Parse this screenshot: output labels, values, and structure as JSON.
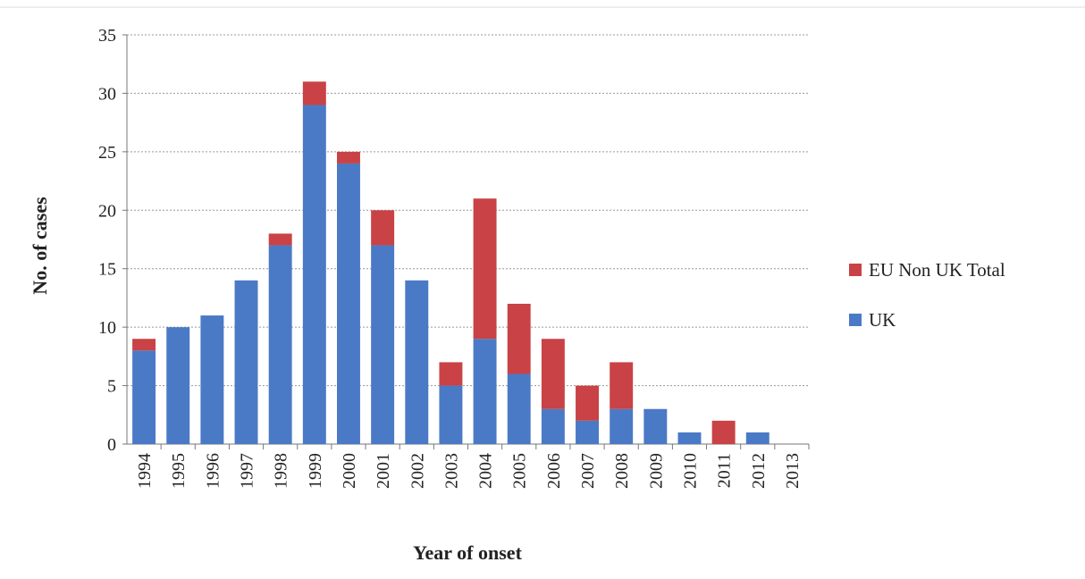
{
  "chart_data": {
    "type": "stacked_bar",
    "x_label": "Year of onset",
    "y_label": "No. of cases",
    "categories": [
      "1994",
      "1995",
      "1996",
      "1997",
      "1998",
      "1999",
      "2000",
      "2001",
      "2002",
      "2003",
      "2004",
      "2005",
      "2006",
      "2007",
      "2008",
      "2009",
      "2010",
      "2011",
      "2012",
      "2013"
    ],
    "series": [
      {
        "name": "UK",
        "color": "#4a7ac6",
        "values": [
          8,
          10,
          11,
          14,
          17,
          29,
          24,
          17,
          14,
          5,
          9,
          6,
          3,
          2,
          3,
          3,
          1,
          0,
          1,
          0
        ]
      },
      {
        "name": "EU Non UK Total",
        "color": "#c94245",
        "values": [
          1,
          0,
          0,
          0,
          1,
          2,
          1,
          3,
          0,
          2,
          12,
          6,
          6,
          3,
          4,
          0,
          0,
          2,
          0,
          0
        ]
      }
    ],
    "ylim": [
      0,
      35
    ],
    "yticks": [
      0,
      5,
      10,
      15,
      20,
      25,
      30,
      35
    ],
    "grid": true,
    "legend": "right"
  }
}
